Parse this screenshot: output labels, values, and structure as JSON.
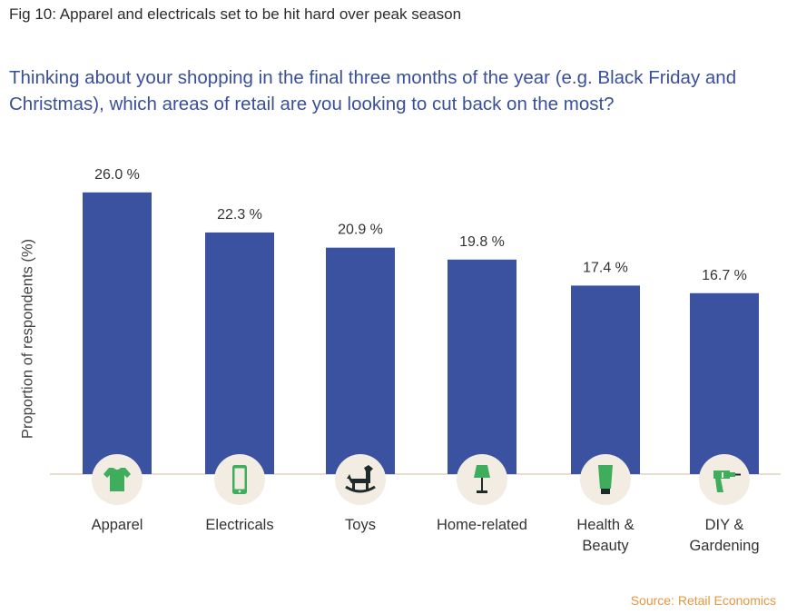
{
  "figure_title": "Fig 10: Apparel and electricals set to be hit hard over peak season",
  "question": "Thinking about your shopping in the final three months of the year (e.g. Black Friday and Christmas), which areas of retail are you looking to cut back on the most?",
  "source": "Source: Retail Economics",
  "colors": {
    "bar": "#3a52a0",
    "icon": "#3fae5c",
    "icon_bg": "#f3ece3",
    "axis": "#e9ddd0",
    "label_text": "#333333"
  },
  "chart_data": {
    "type": "bar",
    "ylabel": "Proportion of respondents (%)",
    "ylim": [
      0,
      30
    ],
    "categories": [
      {
        "label": [
          "Apparel"
        ],
        "value": 26.0,
        "value_label": "26.0 %",
        "icon": "tshirt-icon"
      },
      {
        "label": [
          "Electricals"
        ],
        "value": 22.3,
        "value_label": "22.3 %",
        "icon": "smartphone-icon"
      },
      {
        "label": [
          "Toys"
        ],
        "value": 20.9,
        "value_label": "20.9 %",
        "icon": "rocking-horse-icon"
      },
      {
        "label": [
          "Home-related"
        ],
        "value": 19.8,
        "value_label": "19.8 %",
        "icon": "lamp-icon"
      },
      {
        "label": [
          "Health &",
          "Beauty"
        ],
        "value": 17.4,
        "value_label": "17.4 %",
        "icon": "cosmetic-tube-icon"
      },
      {
        "label": [
          "DIY &",
          "Gardening"
        ],
        "value": 16.7,
        "value_label": "16.7 %",
        "icon": "drill-icon"
      }
    ]
  }
}
